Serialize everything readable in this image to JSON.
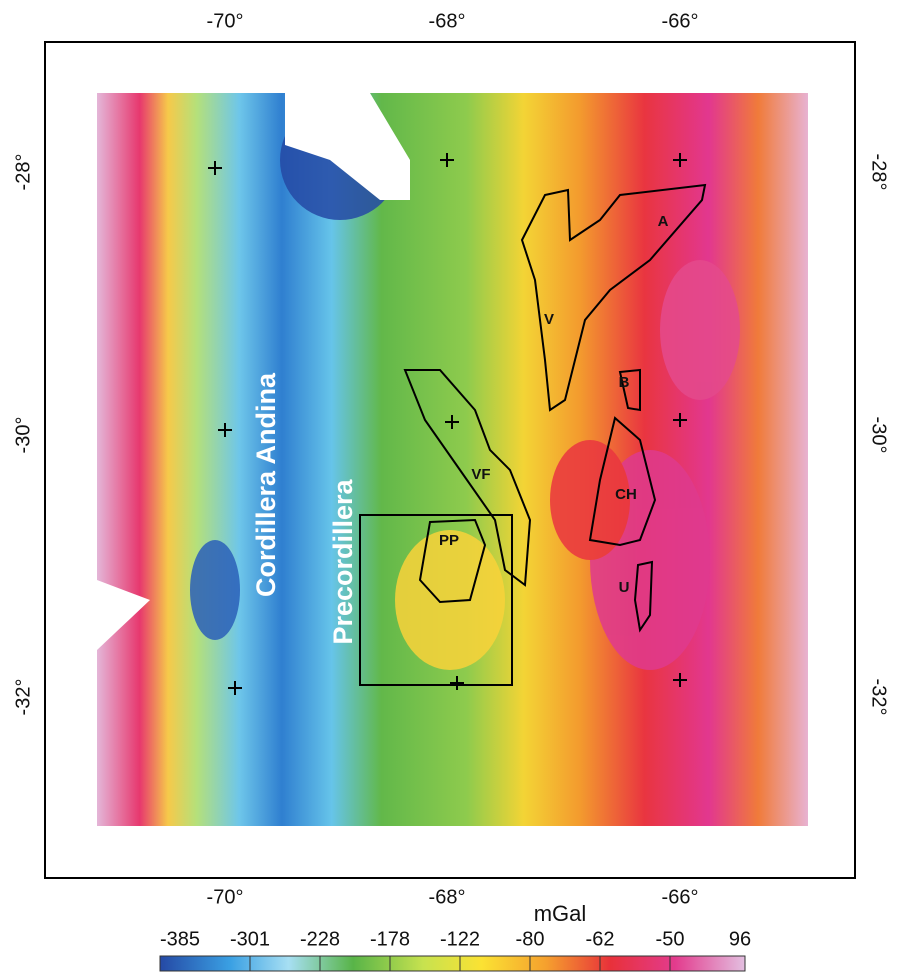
{
  "map": {
    "x_labels": [
      "-70°",
      "-68°",
      "-66°"
    ],
    "y_labels": [
      "-28°",
      "-30°",
      "-32°"
    ],
    "regions": [
      "Cordillera Andina",
      "Precordillera"
    ],
    "bodies": [
      "A",
      "V",
      "B",
      "VF",
      "CH",
      "PP",
      "U"
    ]
  },
  "colorbar": {
    "unit": "mGal",
    "ticks": [
      -385,
      -301,
      -228,
      -178,
      -122,
      -80,
      -62,
      -50,
      96
    ]
  }
}
